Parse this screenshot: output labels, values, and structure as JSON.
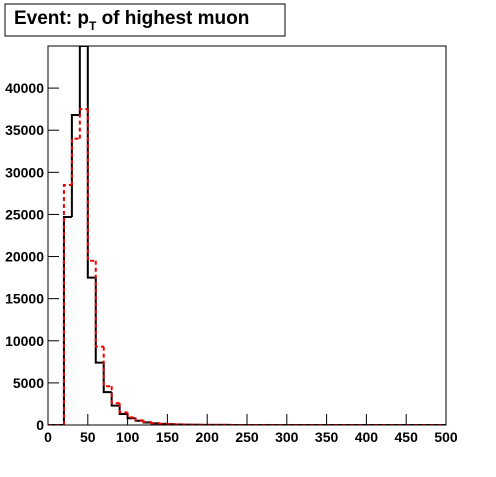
{
  "chart_data": {
    "type": "histogram",
    "title": {
      "prefix": "Event: p",
      "sub": "T",
      "suffix": " of highest muon"
    },
    "bins": [
      0,
      10,
      20,
      30,
      40,
      50,
      60,
      70,
      80,
      90,
      100,
      110,
      120,
      130,
      140,
      150,
      160,
      170,
      180,
      190,
      200,
      210,
      220,
      230,
      240,
      250,
      260,
      270,
      280,
      290,
      300,
      310,
      320,
      330,
      340,
      350,
      360,
      370,
      380,
      390,
      400,
      410,
      420,
      430,
      440,
      450,
      460,
      470,
      480,
      490,
      500
    ],
    "series": [
      {
        "color": "#000000",
        "dash": false,
        "values": [
          0,
          0,
          24700,
          36800,
          45000,
          17500,
          7400,
          3900,
          2300,
          1300,
          800,
          500,
          300,
          200,
          130,
          90,
          60,
          40,
          30,
          20,
          15,
          10,
          8,
          6,
          5,
          4,
          3,
          3,
          2,
          2,
          2,
          1,
          1,
          1,
          1,
          1,
          1,
          1,
          0,
          0,
          0,
          0,
          0,
          0,
          0,
          0,
          0,
          0,
          0,
          0
        ]
      },
      {
        "color": "#ee0000",
        "dash": true,
        "values": [
          0,
          0,
          28500,
          34000,
          37500,
          19500,
          9300,
          4600,
          2600,
          1500,
          900,
          550,
          350,
          230,
          150,
          100,
          70,
          45,
          35,
          25,
          18,
          12,
          9,
          7,
          6,
          5,
          4,
          3,
          3,
          2,
          2,
          2,
          1,
          1,
          1,
          1,
          1,
          1,
          1,
          0,
          0,
          0,
          0,
          0,
          0,
          0,
          0,
          0,
          0,
          0
        ]
      }
    ],
    "xlim": [
      0,
      500
    ],
    "xticks": [
      0,
      50,
      100,
      150,
      200,
      250,
      300,
      350,
      400,
      450,
      500
    ],
    "ylim": [
      0,
      45000
    ],
    "yticks": [
      0,
      5000,
      10000,
      15000,
      20000,
      25000,
      30000,
      35000,
      40000
    ]
  }
}
